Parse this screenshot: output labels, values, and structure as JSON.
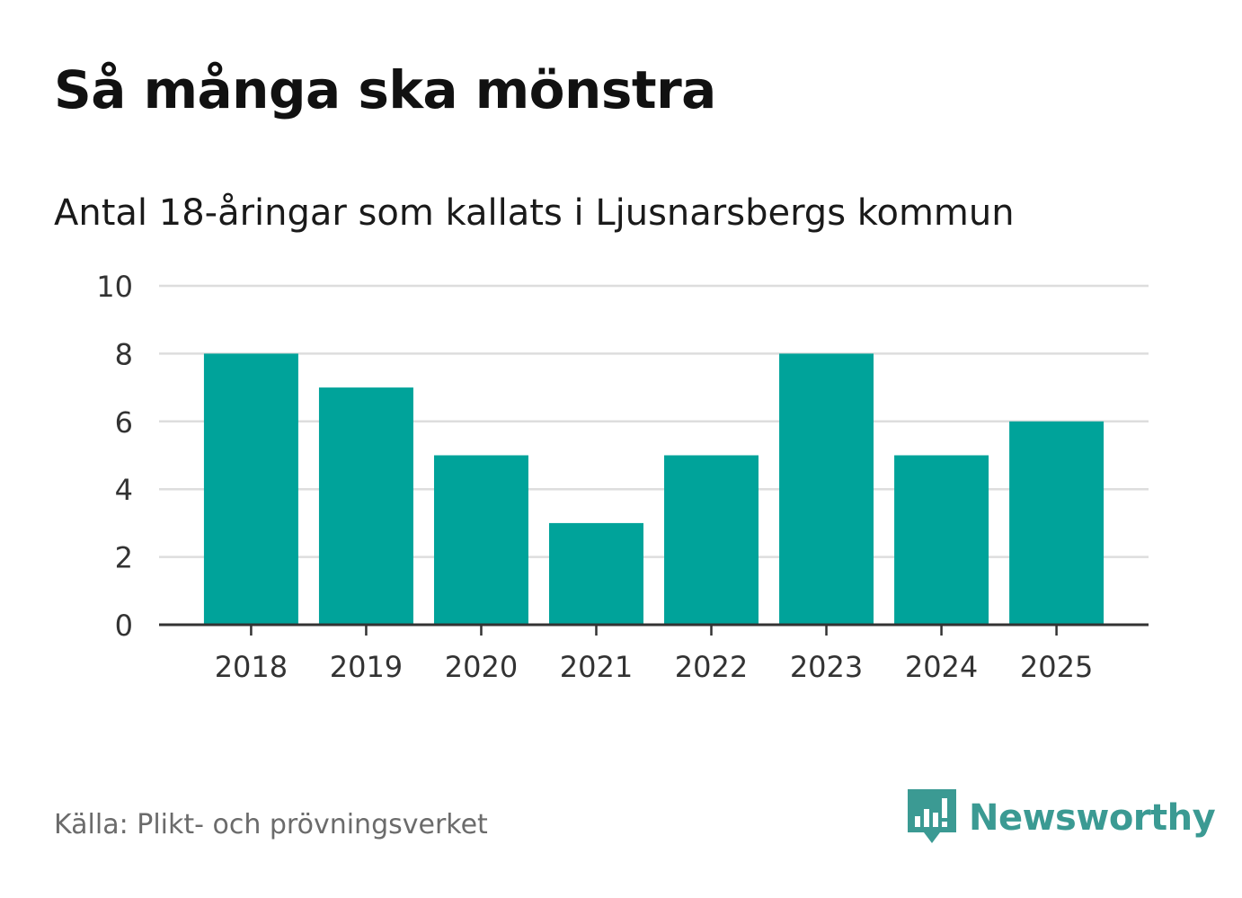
{
  "header": {
    "title": "Så många ska mönstra",
    "subtitle": "Antal 18-åringar som kallats i Ljusnarsbergs kommun"
  },
  "chart_data": {
    "type": "bar",
    "title": "Så många ska mönstra",
    "subtitle": "Antal 18-åringar som kallats i Ljusnarsbergs kommun",
    "categories": [
      "2018",
      "2019",
      "2020",
      "2021",
      "2022",
      "2023",
      "2024",
      "2025"
    ],
    "values": [
      8,
      7,
      5,
      3,
      5,
      8,
      5,
      6
    ],
    "xlabel": "",
    "ylabel": "",
    "ylim": [
      0,
      10
    ],
    "yticks": [
      0,
      2,
      4,
      6,
      8,
      10
    ],
    "grid": true,
    "bar_color": "#00a39a",
    "grid_color": "#dddddd",
    "axis_color": "#333333"
  },
  "footer": {
    "source": "Källa: Plikt- och prövningsverket",
    "brand": "Newsworthy",
    "brand_color": "#3b9a93",
    "brand_icon": "newsworthy-logo-icon"
  }
}
